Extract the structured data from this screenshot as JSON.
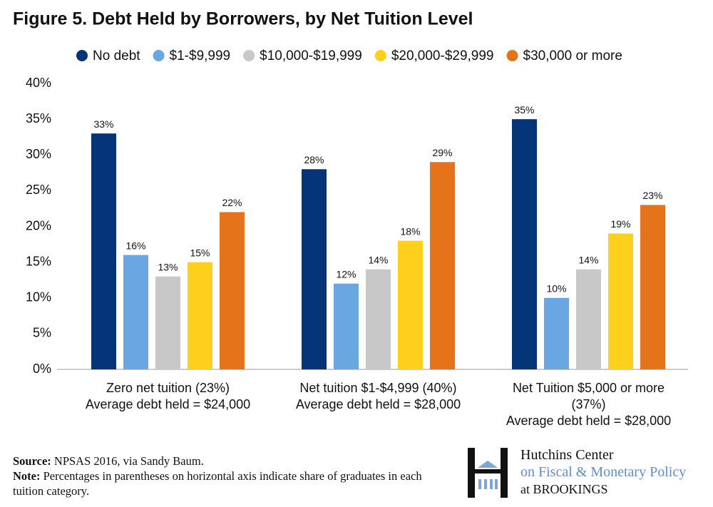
{
  "chart_data": {
    "type": "bar",
    "title": "Figure 5. Debt Held by Borrowers, by Net Tuition Level",
    "categories": [
      "Zero net tuition (23%)\nAverage debt held = $24,000",
      "Net tuition $1-$4,999 (40%)\nAverage debt held  = $28,000",
      "Net Tuition $5,000 or more\n(37%)\nAverage debt held = $28,000"
    ],
    "series": [
      {
        "name": "No debt",
        "color": "#063479",
        "values": [
          33,
          28,
          35
        ],
        "value_labels": [
          "33%",
          "28%",
          "35%"
        ]
      },
      {
        "name": "$1-$9,999",
        "color": "#6aa6e2",
        "values": [
          16,
          12,
          10
        ],
        "value_labels": [
          "16%",
          "12%",
          "10%"
        ]
      },
      {
        "name": "$10,000-$19,999",
        "color": "#c8c8c8",
        "values": [
          13,
          14,
          14
        ],
        "value_labels": [
          "13%",
          "14%",
          "14%"
        ]
      },
      {
        "name": "$20,000-$29,999",
        "color": "#fdd01e",
        "values": [
          15,
          18,
          19
        ],
        "value_labels": [
          "15%",
          "18%",
          "19%"
        ]
      },
      {
        "name": "$30,000 or more",
        "color": "#e5731a",
        "values": [
          22,
          29,
          23
        ],
        "value_labels": [
          "22%",
          "29%",
          "23%"
        ]
      }
    ],
    "ylim": [
      0,
      40
    ],
    "yticks": [
      {
        "value": 0,
        "label": "0%"
      },
      {
        "value": 5,
        "label": "5%"
      },
      {
        "value": 10,
        "label": "10%"
      },
      {
        "value": 15,
        "label": "15%"
      },
      {
        "value": 20,
        "label": "20%"
      },
      {
        "value": 25,
        "label": "25%"
      },
      {
        "value": 30,
        "label": "30%"
      },
      {
        "value": 35,
        "label": "35%"
      },
      {
        "value": 40,
        "label": "40%"
      }
    ],
    "legend_position": "top",
    "grid": false
  },
  "footer": {
    "source_label": "Source:",
    "source": "NPSAS 2016, via Sandy Baum.",
    "note_label": "Note:",
    "note": "Percentages in parentheses on horizontal axis indicate share of graduates in each tuition category."
  },
  "logo": {
    "line1": "Hutchins Center",
    "line2": "on Fiscal & Monetary Policy",
    "line3": "at BROOKINGS"
  }
}
